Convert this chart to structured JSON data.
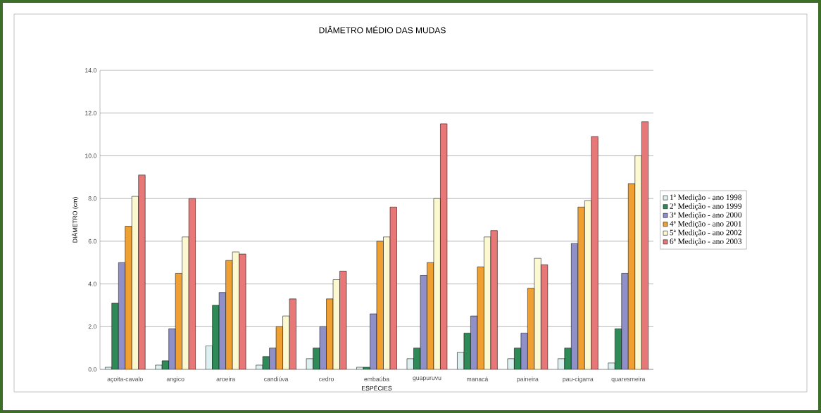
{
  "chart_data": {
    "type": "bar",
    "title": "DIÂMETRO MÉDIO DAS MUDAS",
    "xlabel": "ESPÉCIES",
    "ylabel": "DIÂMETRO (cm)",
    "categories": [
      "açoita-cavalo",
      "angico",
      "aroeira",
      "candiúva",
      "cedro",
      "embaúba",
      "guapuruvu",
      "manacá",
      "paineira",
      "pau-cigarra",
      "quaresmeira"
    ],
    "series": [
      {
        "name": "1ª Medição - ano 1998",
        "color": "#ddf0f0",
        "values": [
          0.1,
          0.2,
          1.1,
          0.2,
          0.5,
          0.1,
          0.5,
          0.8,
          0.5,
          0.5,
          0.3
        ]
      },
      {
        "name": "2ª Medição - ano 1999",
        "color": "#2e8b57",
        "values": [
          3.1,
          0.4,
          3.0,
          0.6,
          1.0,
          0.1,
          1.0,
          1.7,
          1.0,
          1.0,
          1.9
        ]
      },
      {
        "name": "3ª Medição - ano 2000",
        "color": "#9090c8",
        "values": [
          5.0,
          1.9,
          3.6,
          1.0,
          2.0,
          2.6,
          4.4,
          2.5,
          1.7,
          5.9,
          4.5
        ]
      },
      {
        "name": "4ª Medição - ano 2001",
        "color": "#f0a030",
        "values": [
          6.7,
          4.5,
          5.1,
          2.0,
          3.3,
          6.0,
          5.0,
          4.8,
          3.8,
          7.6,
          8.7
        ]
      },
      {
        "name": "5ª Medição - ano 2002",
        "color": "#fcf8d0",
        "values": [
          8.1,
          6.2,
          5.5,
          2.5,
          4.2,
          6.2,
          8.0,
          6.2,
          5.2,
          7.9,
          10.0
        ]
      },
      {
        "name": "6ª Medição - ano 2003",
        "color": "#e87878",
        "values": [
          9.1,
          8.0,
          5.4,
          3.3,
          4.6,
          7.6,
          11.5,
          6.5,
          4.9,
          10.9,
          11.6
        ]
      }
    ],
    "ylim": [
      0,
      14
    ],
    "yticks": [
      {
        "value": 0,
        "label": "0.0"
      },
      {
        "value": 2,
        "label": "2.0"
      },
      {
        "value": 4,
        "label": "4.0"
      },
      {
        "value": 6,
        "label": "6.0"
      },
      {
        "value": 8,
        "label": "8.0"
      },
      {
        "value": 10,
        "label": "10.0"
      },
      {
        "value": 12,
        "label": "12.0"
      },
      {
        "value": 14,
        "label": "14.0"
      }
    ],
    "grid": "y",
    "legend": "right"
  }
}
